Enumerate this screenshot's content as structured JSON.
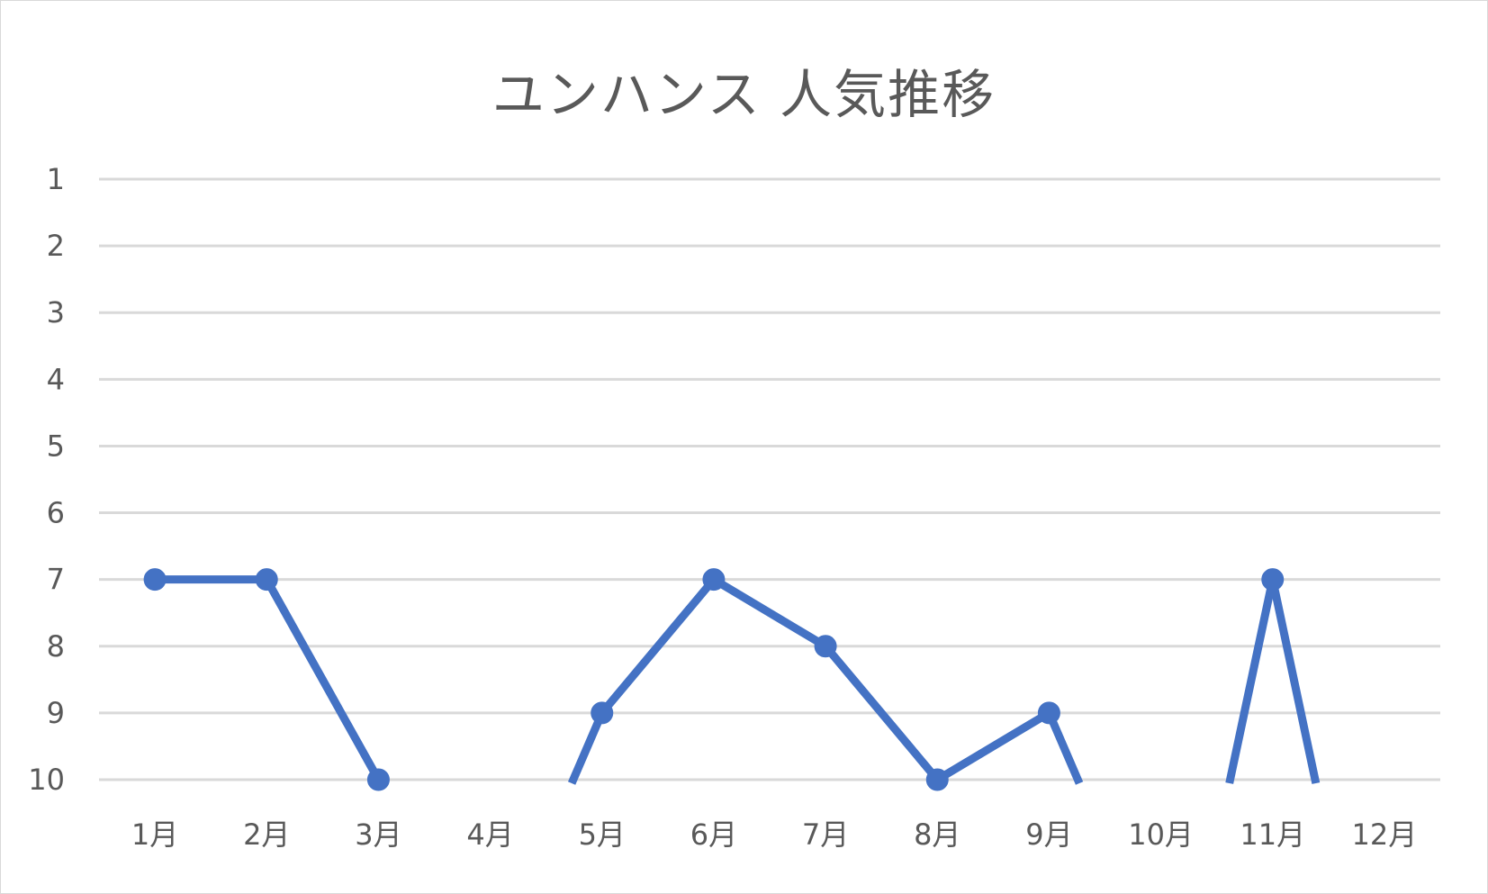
{
  "chart_data": {
    "type": "line",
    "title": "ユンハンス 人気推移",
    "categories": [
      "1月",
      "2月",
      "3月",
      "4月",
      "5月",
      "6月",
      "7月",
      "8月",
      "9月",
      "10月",
      "11月",
      "12月"
    ],
    "y_ticks": [
      "1",
      "2",
      "3",
      "4",
      "5",
      "6",
      "7",
      "8",
      "9",
      "10"
    ],
    "ylim": [
      1,
      10
    ],
    "y_reversed": true,
    "grid": true,
    "legend": "none",
    "series": [
      {
        "values": [
          7,
          7,
          10,
          null,
          9,
          7,
          8,
          10,
          9,
          null,
          7,
          null
        ],
        "color": "#4472c4"
      }
    ]
  }
}
